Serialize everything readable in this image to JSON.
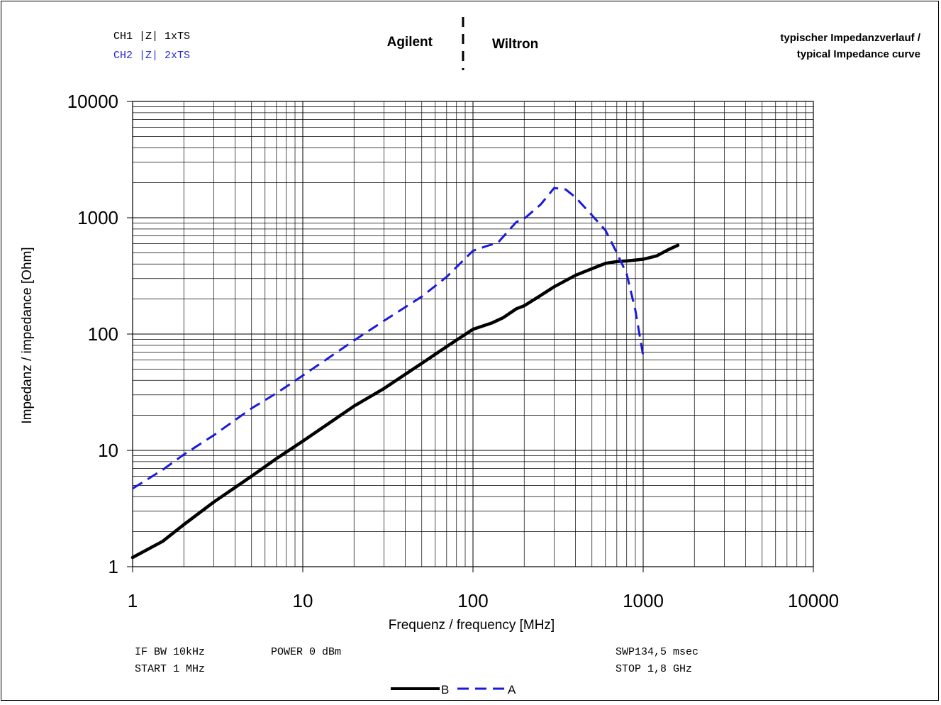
{
  "header": {
    "ch1": "CH1 |Z| 1xTS",
    "ch2": "CH2 |Z| 2xTS",
    "left_device": "Agilent",
    "right_device": "Wiltron",
    "title_line1": "typischer Impedanzverlauf /",
    "title_line2": "typical Impedance curve"
  },
  "footer": {
    "if_bw": "IF BW 10kHz",
    "power": "POWER 0 dBm",
    "start": "START 1 MHz",
    "swp": "SWP134,5 msec",
    "stop": "STOP 1,8 GHz"
  },
  "colors": {
    "series_b": "#000000",
    "series_a": "#1a1adc",
    "ch2_text": "#2a2ad6"
  },
  "chart_data": {
    "type": "line",
    "xlabel": "Frequenz / frequency [MHz]",
    "ylabel": "Impedanz / impedance [Ohm]",
    "xscale": "log",
    "yscale": "log",
    "xlim": [
      1,
      10000
    ],
    "ylim": [
      1,
      10000
    ],
    "x_ticks": [
      "1",
      "10",
      "100",
      "1000",
      "10000"
    ],
    "y_ticks": [
      "1",
      "10",
      "100",
      "1000",
      "10000"
    ],
    "grid": true,
    "legend": {
      "position": "bottom-center"
    },
    "series": [
      {
        "name": "B",
        "style": "solid",
        "points": [
          [
            1,
            1.2
          ],
          [
            1.5,
            1.65
          ],
          [
            2,
            2.3
          ],
          [
            3,
            3.6
          ],
          [
            5,
            6.0
          ],
          [
            7,
            8.5
          ],
          [
            10,
            12
          ],
          [
            20,
            24
          ],
          [
            30,
            34
          ],
          [
            50,
            56
          ],
          [
            70,
            78
          ],
          [
            100,
            110
          ],
          [
            130,
            125
          ],
          [
            150,
            138
          ],
          [
            180,
            165
          ],
          [
            200,
            175
          ],
          [
            250,
            215
          ],
          [
            300,
            255
          ],
          [
            400,
            320
          ],
          [
            500,
            365
          ],
          [
            600,
            405
          ],
          [
            700,
            420
          ],
          [
            800,
            425
          ],
          [
            1000,
            440
          ],
          [
            1200,
            470
          ],
          [
            1400,
            530
          ],
          [
            1600,
            580
          ]
        ]
      },
      {
        "name": "A",
        "style": "dashed",
        "points": [
          [
            1,
            4.7
          ],
          [
            1.5,
            6.8
          ],
          [
            2,
            9.2
          ],
          [
            3,
            13.5
          ],
          [
            5,
            23
          ],
          [
            7,
            31
          ],
          [
            10,
            44
          ],
          [
            20,
            88
          ],
          [
            30,
            130
          ],
          [
            50,
            210
          ],
          [
            70,
            310
          ],
          [
            100,
            520
          ],
          [
            120,
            570
          ],
          [
            140,
            610
          ],
          [
            160,
            760
          ],
          [
            180,
            920
          ],
          [
            200,
            980
          ],
          [
            250,
            1300
          ],
          [
            300,
            1800
          ],
          [
            350,
            1750
          ],
          [
            400,
            1500
          ],
          [
            500,
            1050
          ],
          [
            600,
            780
          ],
          [
            700,
            500
          ],
          [
            800,
            330
          ],
          [
            900,
            160
          ],
          [
            1000,
            65
          ]
        ]
      }
    ]
  }
}
